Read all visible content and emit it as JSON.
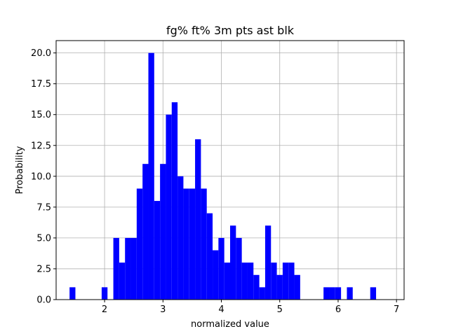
{
  "chart_data": {
    "type": "bar",
    "title": "fg% ft% 3m pts ast blk",
    "xlabel": "normalized value",
    "ylabel": "Probability",
    "xlim": [
      1.17,
      7.13
    ],
    "ylim": [
      0,
      21.0
    ],
    "grid": true,
    "bar_color": "#0000ff",
    "bin_width": 0.1,
    "x_ticks": [
      2,
      3,
      4,
      5,
      6,
      7
    ],
    "x_tick_labels": [
      "2",
      "3",
      "4",
      "5",
      "6",
      "7"
    ],
    "y_ticks": [
      0.0,
      2.5,
      5.0,
      7.5,
      10.0,
      12.5,
      15.0,
      17.5,
      20.0
    ],
    "y_tick_labels": [
      "0.0",
      "2.5",
      "5.0",
      "7.5",
      "10.0",
      "12.5",
      "15.0",
      "17.5",
      "20.0"
    ],
    "bins": [
      {
        "x": 1.4,
        "y": 1
      },
      {
        "x": 1.95,
        "y": 1
      },
      {
        "x": 2.15,
        "y": 5
      },
      {
        "x": 2.25,
        "y": 3
      },
      {
        "x": 2.35,
        "y": 5
      },
      {
        "x": 2.45,
        "y": 5
      },
      {
        "x": 2.55,
        "y": 9
      },
      {
        "x": 2.65,
        "y": 11
      },
      {
        "x": 2.75,
        "y": 20
      },
      {
        "x": 2.85,
        "y": 8
      },
      {
        "x": 2.95,
        "y": 11
      },
      {
        "x": 3.05,
        "y": 15
      },
      {
        "x": 3.15,
        "y": 16
      },
      {
        "x": 3.25,
        "y": 10
      },
      {
        "x": 3.35,
        "y": 9
      },
      {
        "x": 3.45,
        "y": 9
      },
      {
        "x": 3.55,
        "y": 13
      },
      {
        "x": 3.65,
        "y": 9
      },
      {
        "x": 3.75,
        "y": 7
      },
      {
        "x": 3.85,
        "y": 4
      },
      {
        "x": 3.95,
        "y": 5
      },
      {
        "x": 4.05,
        "y": 3
      },
      {
        "x": 4.15,
        "y": 6
      },
      {
        "x": 4.25,
        "y": 5
      },
      {
        "x": 4.35,
        "y": 3
      },
      {
        "x": 4.45,
        "y": 3
      },
      {
        "x": 4.55,
        "y": 2
      },
      {
        "x": 4.65,
        "y": 1
      },
      {
        "x": 4.75,
        "y": 6
      },
      {
        "x": 4.85,
        "y": 3
      },
      {
        "x": 4.95,
        "y": 2
      },
      {
        "x": 5.05,
        "y": 3
      },
      {
        "x": 5.15,
        "y": 3
      },
      {
        "x": 5.25,
        "y": 2
      },
      {
        "x": 5.75,
        "y": 1
      },
      {
        "x": 5.85,
        "y": 1
      },
      {
        "x": 5.95,
        "y": 1
      },
      {
        "x": 6.15,
        "y": 1
      },
      {
        "x": 6.55,
        "y": 1
      }
    ]
  }
}
